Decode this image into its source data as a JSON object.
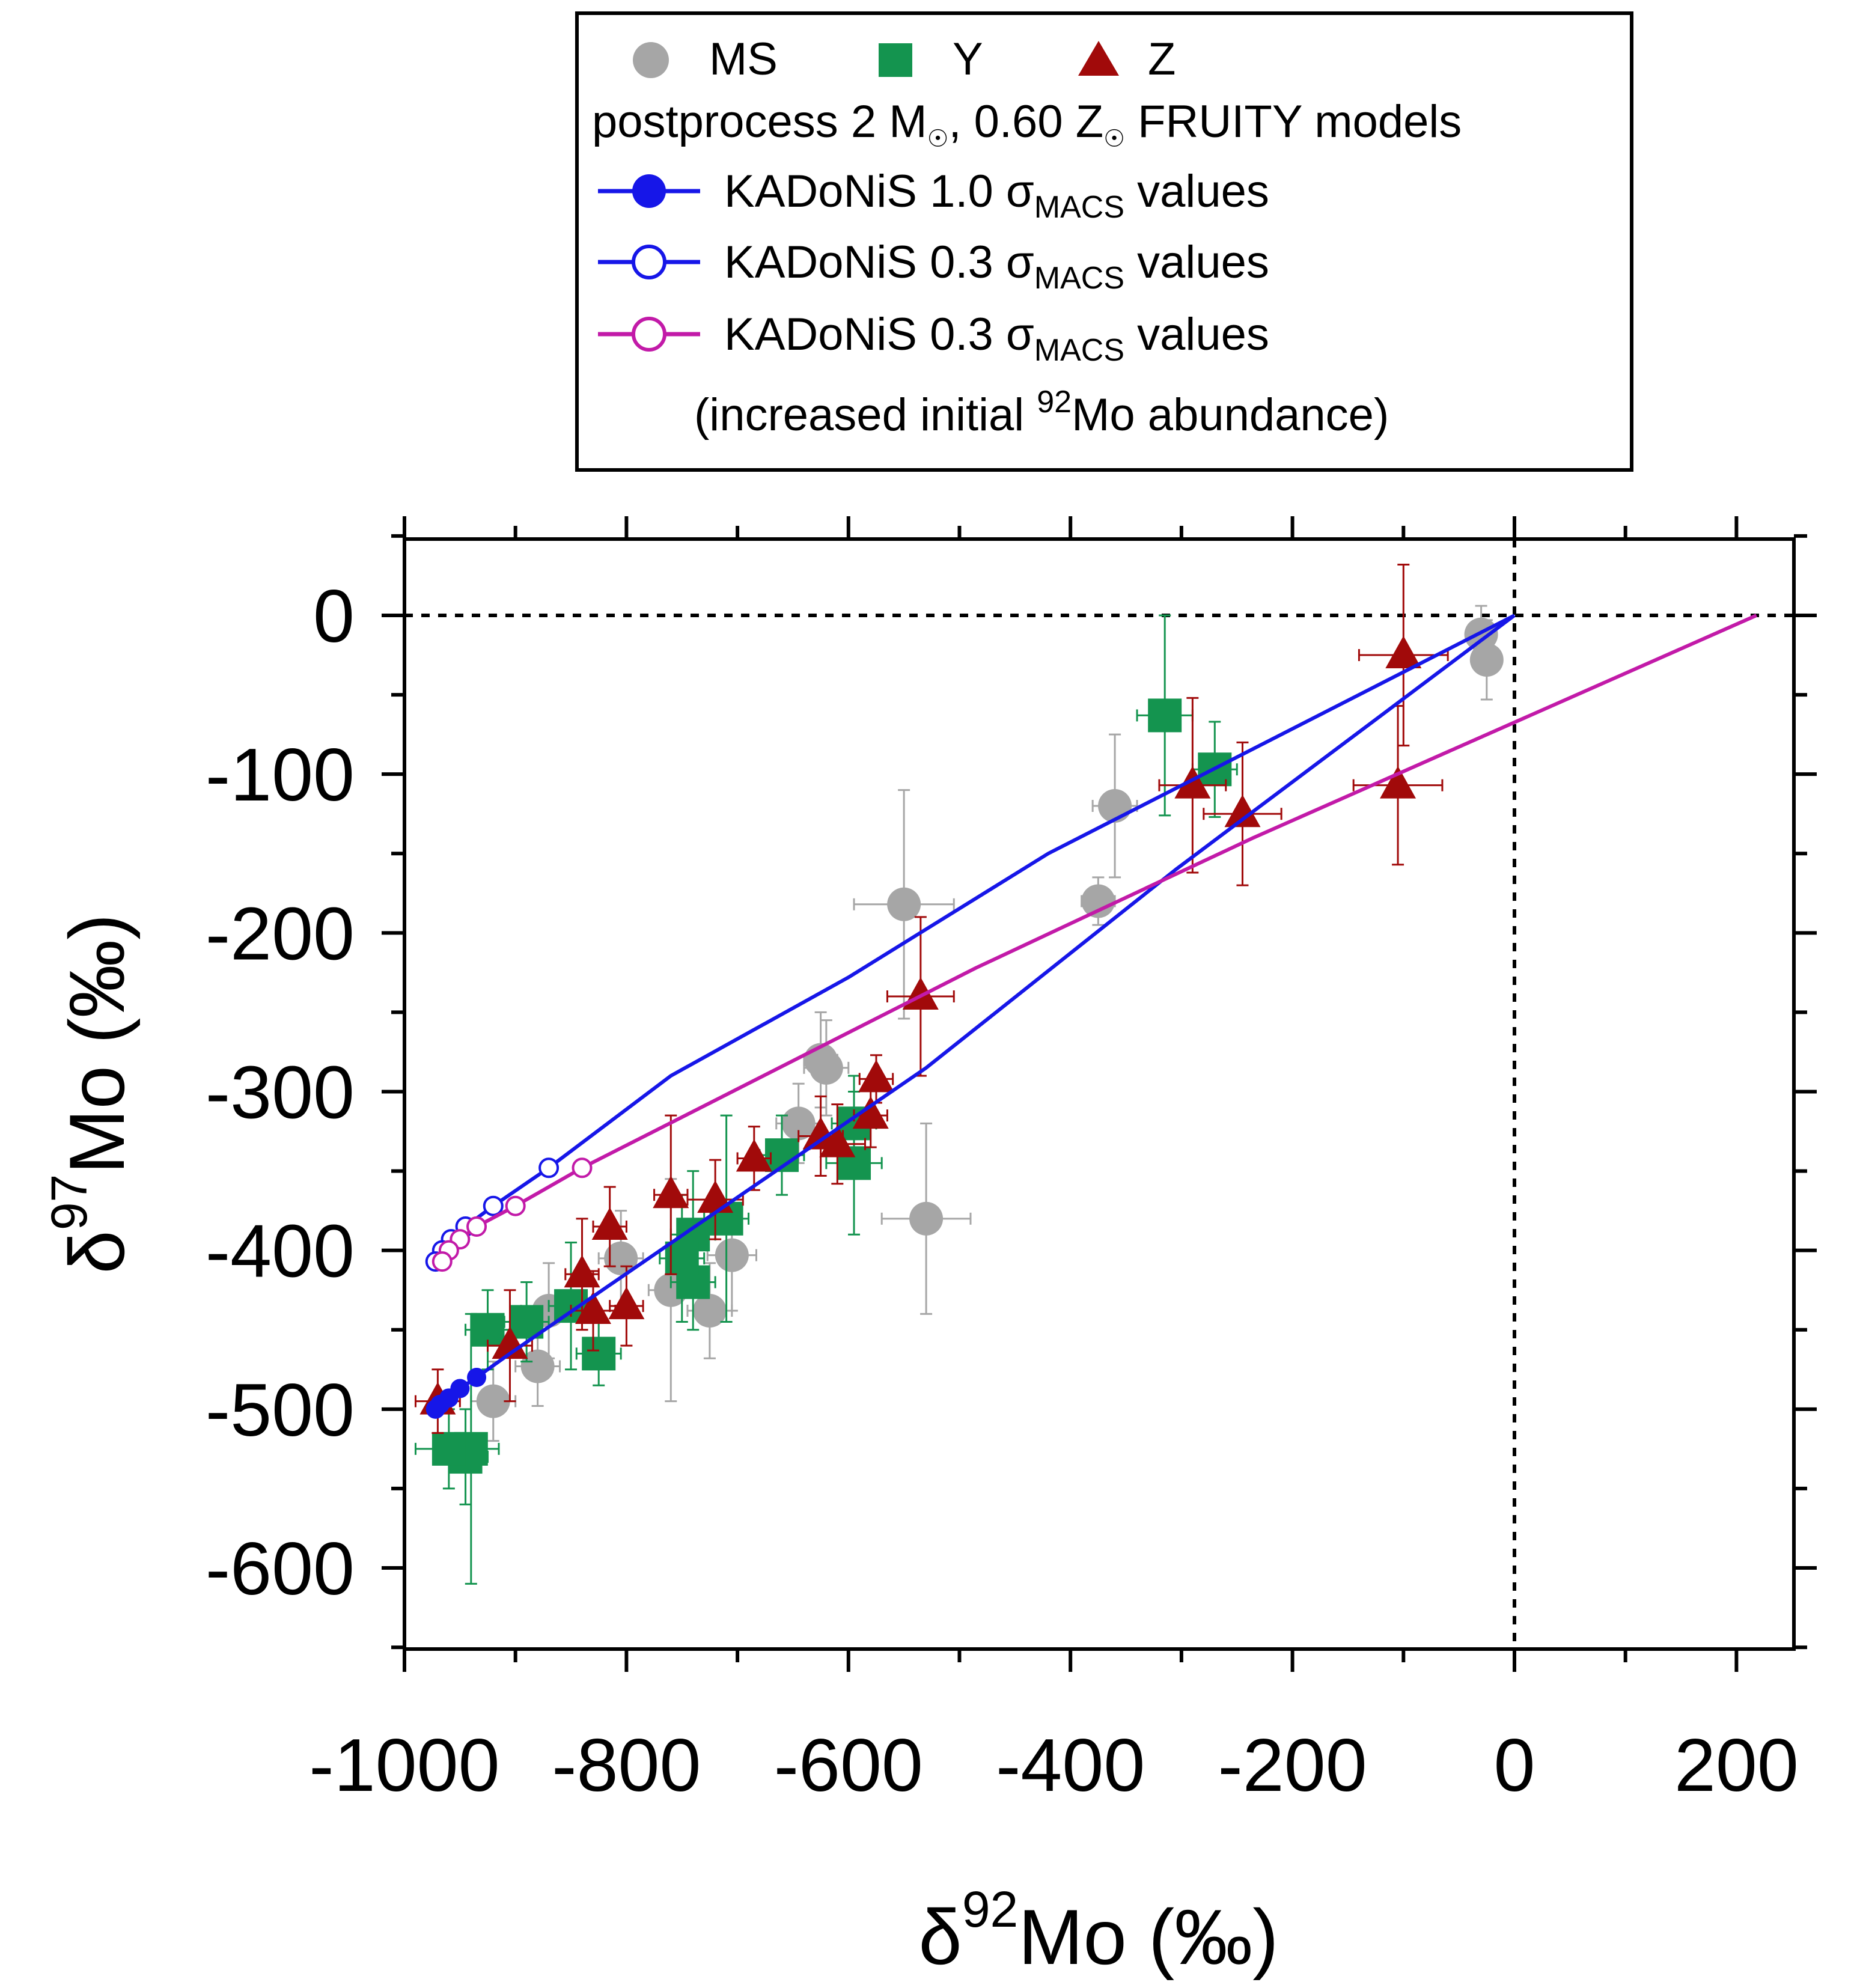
{
  "legend": {
    "ms_label": "MS",
    "y_label": "Y",
    "z_label": "Z",
    "model_line_pre": "postprocess 2 M",
    "model_line_mid": ", 0.60 Z",
    "model_line_post": " FRUITY models",
    "k10_label_pre": "KADoNiS 1.0 σ",
    "k10_label_sub": "MACS",
    "k10_label_post": " values",
    "k03_label_pre": "KADoNiS 0.3 σ",
    "k03_label_sub": "MACS",
    "k03_label_post": " values",
    "k03m_label_pre": "KADoNiS 0.3 σ",
    "k03m_label_sub": "MACS",
    "k03m_label_post": " values",
    "k03m_note_pre": "(increased initial ",
    "k03m_note_sup": "92",
    "k03m_note_post": "Mo abundance)"
  },
  "axes": {
    "x_delta": "δ",
    "x_sup": "92",
    "x_rest": "Mo (‰)",
    "y_delta": "δ",
    "y_sup": "97",
    "y_rest": "Mo (‰)"
  },
  "colors": {
    "ms": "#a6a6a6",
    "y": "#14944f",
    "z": "#a10a0a",
    "kadonis": "#1616e8",
    "kadonis_mod": "#c21aa8"
  },
  "chart_data": {
    "type": "scatter",
    "title": "",
    "xlabel": "δ92Mo (‰)",
    "ylabel": "δ97Mo (‰)",
    "xlim": [
      -1000,
      250
    ],
    "ylim": [
      -650,
      50
    ],
    "xticks": [
      -1000,
      -800,
      -600,
      -400,
      -200,
      0,
      200
    ],
    "yticks": [
      0,
      -100,
      -200,
      -300,
      -400,
      -500,
      -600
    ],
    "reference_lines": {
      "x": 0,
      "y": 0,
      "style": "dotted"
    },
    "series": [
      {
        "name": "MS",
        "marker": "circle",
        "color": "#a6a6a6",
        "points": [
          {
            "x": -30,
            "y": -12,
            "xerr": 10,
            "yerr": 18
          },
          {
            "x": -25,
            "y": -28,
            "xerr": 12,
            "yerr": 25
          },
          {
            "x": -360,
            "y": -120,
            "xerr": 20,
            "yerr": 45
          },
          {
            "x": -375,
            "y": -180,
            "xerr": 15,
            "yerr": 15
          },
          {
            "x": -550,
            "y": -182,
            "xerr": 45,
            "yerr": 72
          },
          {
            "x": -530,
            "y": -380,
            "xerr": 40,
            "yerr": 60
          },
          {
            "x": -625,
            "y": -280,
            "xerr": 15,
            "yerr": 30
          },
          {
            "x": -620,
            "y": -285,
            "xerr": 20,
            "yerr": 30
          },
          {
            "x": -645,
            "y": -320,
            "xerr": 20,
            "yerr": 25
          },
          {
            "x": -705,
            "y": -403,
            "xerr": 22,
            "yerr": 35
          },
          {
            "x": -725,
            "y": -438,
            "xerr": 20,
            "yerr": 30
          },
          {
            "x": -760,
            "y": -425,
            "xerr": 20,
            "yerr": 70
          },
          {
            "x": -805,
            "y": -405,
            "xerr": 20,
            "yerr": 30
          },
          {
            "x": -880,
            "y": -473,
            "xerr": 20,
            "yerr": 25
          },
          {
            "x": -870,
            "y": -438,
            "xerr": 25,
            "yerr": 30
          },
          {
            "x": -920,
            "y": -495,
            "xerr": 20,
            "yerr": 25
          }
        ]
      },
      {
        "name": "Y",
        "marker": "square",
        "color": "#14944f",
        "points": [
          {
            "x": -315,
            "y": -63,
            "xerr": 25,
            "yerr": 63
          },
          {
            "x": -270,
            "y": -97,
            "xerr": 20,
            "yerr": 30
          },
          {
            "x": -595,
            "y": -345,
            "xerr": 25,
            "yerr": 45
          },
          {
            "x": -595,
            "y": -320,
            "xerr": 20,
            "yerr": 30
          },
          {
            "x": -660,
            "y": -340,
            "xerr": 20,
            "yerr": 25
          },
          {
            "x": -710,
            "y": -380,
            "xerr": 20,
            "yerr": 65
          },
          {
            "x": -740,
            "y": -390,
            "xerr": 20,
            "yerr": 40
          },
          {
            "x": -740,
            "y": -420,
            "xerr": 20,
            "yerr": 30
          },
          {
            "x": -750,
            "y": -405,
            "xerr": 20,
            "yerr": 40
          },
          {
            "x": -825,
            "y": -465,
            "xerr": 20,
            "yerr": 20
          },
          {
            "x": -850,
            "y": -435,
            "xerr": 20,
            "yerr": 40
          },
          {
            "x": -890,
            "y": -445,
            "xerr": 20,
            "yerr": 25
          },
          {
            "x": -925,
            "y": -450,
            "xerr": 20,
            "yerr": 25
          },
          {
            "x": -940,
            "y": -525,
            "xerr": 25,
            "yerr": 85
          },
          {
            "x": -945,
            "y": -530,
            "xerr": 20,
            "yerr": 30
          },
          {
            "x": -960,
            "y": -525,
            "xerr": 30,
            "yerr": 25
          }
        ]
      },
      {
        "name": "Z",
        "marker": "triangle",
        "color": "#a10a0a",
        "points": [
          {
            "x": -100,
            "y": -25,
            "xerr": 40,
            "yerr": 57
          },
          {
            "x": -105,
            "y": -107,
            "xerr": 40,
            "yerr": 50
          },
          {
            "x": -290,
            "y": -107,
            "xerr": 30,
            "yerr": 55
          },
          {
            "x": -245,
            "y": -125,
            "xerr": 35,
            "yerr": 45
          },
          {
            "x": -535,
            "y": -240,
            "xerr": 30,
            "yerr": 50
          },
          {
            "x": -575,
            "y": -292,
            "xerr": 15,
            "yerr": 15
          },
          {
            "x": -580,
            "y": -315,
            "xerr": 15,
            "yerr": 20
          },
          {
            "x": -610,
            "y": -333,
            "xerr": 25,
            "yerr": 25
          },
          {
            "x": -625,
            "y": -328,
            "xerr": 20,
            "yerr": 25
          },
          {
            "x": -685,
            "y": -342,
            "xerr": 15,
            "yerr": 20
          },
          {
            "x": -720,
            "y": -368,
            "xerr": 25,
            "yerr": 25
          },
          {
            "x": -760,
            "y": -365,
            "xerr": 15,
            "yerr": 50
          },
          {
            "x": -800,
            "y": -435,
            "xerr": 15,
            "yerr": 25
          },
          {
            "x": -815,
            "y": -385,
            "xerr": 15,
            "yerr": 25
          },
          {
            "x": -830,
            "y": -438,
            "xerr": 20,
            "yerr": 25
          },
          {
            "x": -840,
            "y": -415,
            "xerr": 15,
            "yerr": 35
          },
          {
            "x": -905,
            "y": -460,
            "xerr": 20,
            "yerr": 35
          },
          {
            "x": -970,
            "y": -495,
            "xerr": 20,
            "yerr": 20
          }
        ]
      },
      {
        "name": "KADoNiS 1.0 σMACS values",
        "type": "line",
        "color": "#1616e8",
        "marker": "filled-circle",
        "x": [
          0,
          -305,
          -530,
          -905,
          -935,
          -950,
          -960,
          -968,
          -972
        ],
        "y": [
          0,
          -160,
          -285,
          -465,
          -480,
          -487,
          -493,
          -497,
          -500
        ],
        "marker_indices": [
          4,
          5,
          6,
          7,
          8
        ]
      },
      {
        "name": "KADoNiS 0.3 σMACS values",
        "type": "line",
        "color": "#1616e8",
        "marker": "open-circle",
        "x": [
          0,
          -420,
          -600,
          -760,
          -870,
          -920,
          -945,
          -958,
          -966,
          -972
        ],
        "y": [
          0,
          -150,
          -228,
          -290,
          -348,
          -372,
          -385,
          -393,
          -400,
          -407
        ],
        "marker_indices": [
          4,
          5,
          6,
          7,
          8,
          9
        ]
      },
      {
        "name": "KADoNiS 0.3 σMACS values (increased initial 92Mo abundance)",
        "type": "line",
        "color": "#c21aa8",
        "marker": "open-circle",
        "x": [
          218,
          -235,
          -485,
          -840,
          -900,
          -935,
          -950,
          -960,
          -966
        ],
        "y": [
          0,
          -140,
          -222,
          -348,
          -372,
          -385,
          -393,
          -400,
          -407
        ],
        "marker_indices": [
          3,
          4,
          5,
          6,
          7,
          8
        ]
      }
    ]
  }
}
